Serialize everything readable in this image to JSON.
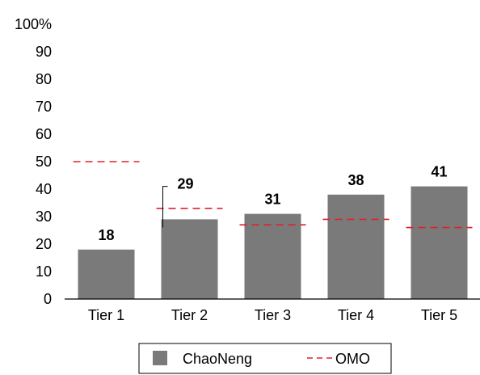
{
  "chart_data": {
    "type": "bar",
    "categories": [
      "Tier 1",
      "Tier 2",
      "Tier 3",
      "Tier 4",
      "Tier 5"
    ],
    "series": [
      {
        "name": "ChaoNeng",
        "values": [
          18,
          29,
          31,
          38,
          41
        ],
        "type": "bar",
        "color": "#7a7a7a"
      },
      {
        "name": "OMO",
        "values": [
          50,
          33,
          27,
          29,
          26
        ],
        "type": "line-dashed",
        "color": "#e0202a"
      }
    ],
    "data_labels": [
      "18",
      "29",
      "31",
      "38",
      "41"
    ],
    "y_ticks": [
      "0",
      "10",
      "20",
      "30",
      "40",
      "50",
      "60",
      "70",
      "80",
      "90",
      "100%"
    ],
    "ylim": [
      0,
      100
    ],
    "grid": false,
    "legend_position": "bottom",
    "legend": {
      "items": [
        {
          "label": "ChaoNeng",
          "marker": "square"
        },
        {
          "label": "OMO",
          "marker": "dashed-line"
        }
      ]
    }
  }
}
